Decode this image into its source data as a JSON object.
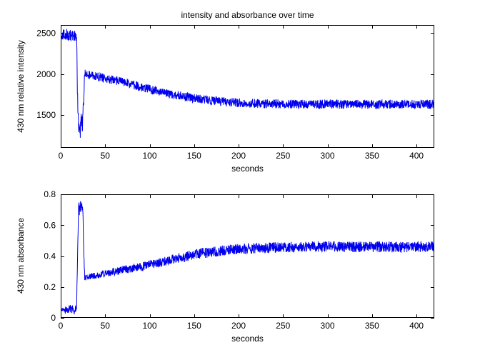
{
  "figure": {
    "background": "#FFFFFF",
    "axis_color": "#000000"
  },
  "chart_data": [
    {
      "type": "line",
      "title": "intensity and absorbance over time",
      "xlabel": "seconds",
      "ylabel": "430 nm relative intensity",
      "xlim": [
        0,
        420
      ],
      "ylim": [
        1100,
        2600
      ],
      "xticks": [
        0,
        50,
        100,
        150,
        200,
        250,
        300,
        350,
        400
      ],
      "yticks": [
        1500,
        2000,
        2500
      ],
      "grid": false,
      "legend": null,
      "series": [
        {
          "name": "430 nm relative intensity",
          "color": "#0000EE",
          "keypoints": [
            [
              0,
              2480
            ],
            [
              5,
              2490
            ],
            [
              10,
              2470
            ],
            [
              16,
              2470
            ],
            [
              18,
              2400
            ],
            [
              19,
              1700
            ],
            [
              20,
              1400
            ],
            [
              21,
              1380
            ],
            [
              22,
              1340
            ],
            [
              23,
              1400
            ],
            [
              24,
              1360
            ],
            [
              25,
              1440
            ],
            [
              26,
              1780
            ],
            [
              27,
              2020
            ],
            [
              30,
              1995
            ],
            [
              40,
              1975
            ],
            [
              50,
              1945
            ],
            [
              60,
              1925
            ],
            [
              70,
              1905
            ],
            [
              80,
              1875
            ],
            [
              90,
              1845
            ],
            [
              100,
              1815
            ],
            [
              110,
              1790
            ],
            [
              120,
              1765
            ],
            [
              130,
              1745
            ],
            [
              140,
              1725
            ],
            [
              150,
              1705
            ],
            [
              160,
              1690
            ],
            [
              170,
              1678
            ],
            [
              180,
              1668
            ],
            [
              190,
              1658
            ],
            [
              200,
              1650
            ],
            [
              220,
              1642
            ],
            [
              240,
              1638
            ],
            [
              260,
              1635
            ],
            [
              280,
              1633
            ],
            [
              300,
              1632
            ],
            [
              320,
              1631
            ],
            [
              340,
              1632
            ],
            [
              360,
              1630
            ],
            [
              380,
              1632
            ],
            [
              400,
              1633
            ],
            [
              420,
              1632
            ]
          ],
          "noise": [
            [
              0,
              70
            ],
            [
              17,
              70
            ],
            [
              18,
              90
            ],
            [
              19,
              130
            ],
            [
              25,
              130
            ],
            [
              26,
              80
            ],
            [
              28,
              55
            ],
            [
              420,
              55
            ]
          ],
          "sample_step": 0.25
        }
      ]
    },
    {
      "type": "line",
      "title": "",
      "xlabel": "seconds",
      "ylabel": "430 nm absorbance",
      "xlim": [
        0,
        420
      ],
      "ylim": [
        0,
        0.8
      ],
      "xticks": [
        0,
        50,
        100,
        150,
        200,
        250,
        300,
        350,
        400
      ],
      "yticks": [
        0,
        0.2,
        0.4,
        0.6,
        0.8
      ],
      "grid": false,
      "legend": null,
      "series": [
        {
          "name": "430 nm absorbance",
          "color": "#0000EE",
          "keypoints": [
            [
              0,
              0.05
            ],
            [
              5,
              0.05
            ],
            [
              10,
              0.06
            ],
            [
              15,
              0.05
            ],
            [
              18,
              0.08
            ],
            [
              19,
              0.45
            ],
            [
              20,
              0.72
            ],
            [
              21,
              0.7
            ],
            [
              22,
              0.74
            ],
            [
              23,
              0.7
            ],
            [
              24,
              0.73
            ],
            [
              25,
              0.65
            ],
            [
              26,
              0.4
            ],
            [
              27,
              0.26
            ],
            [
              30,
              0.265
            ],
            [
              40,
              0.275
            ],
            [
              50,
              0.285
            ],
            [
              60,
              0.3
            ],
            [
              70,
              0.31
            ],
            [
              80,
              0.32
            ],
            [
              90,
              0.33
            ],
            [
              100,
              0.345
            ],
            [
              110,
              0.355
            ],
            [
              120,
              0.37
            ],
            [
              130,
              0.385
            ],
            [
              140,
              0.395
            ],
            [
              150,
              0.41
            ],
            [
              160,
              0.42
            ],
            [
              170,
              0.425
            ],
            [
              180,
              0.435
            ],
            [
              190,
              0.44
            ],
            [
              200,
              0.445
            ],
            [
              220,
              0.45
            ],
            [
              240,
              0.455
            ],
            [
              260,
              0.46
            ],
            [
              280,
              0.46
            ],
            [
              300,
              0.462
            ],
            [
              320,
              0.458
            ],
            [
              340,
              0.46
            ],
            [
              360,
              0.46
            ],
            [
              380,
              0.457
            ],
            [
              400,
              0.46
            ],
            [
              420,
              0.46
            ]
          ],
          "noise": [
            [
              0,
              0.02
            ],
            [
              17,
              0.03
            ],
            [
              19,
              0.05
            ],
            [
              25,
              0.05
            ],
            [
              27,
              0.018
            ],
            [
              60,
              0.025
            ],
            [
              150,
              0.033
            ],
            [
              420,
              0.036
            ]
          ],
          "sample_step": 0.25
        }
      ]
    }
  ]
}
